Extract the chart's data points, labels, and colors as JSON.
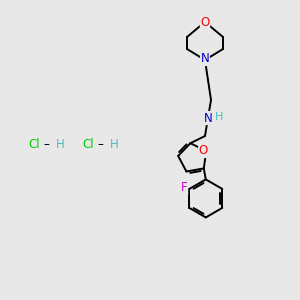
{
  "background_color": "#e8e8e8",
  "bond_color": "#000000",
  "atom_colors": {
    "O": "#ff0000",
    "N": "#0000cc",
    "F": "#cc00cc",
    "C": "#000000",
    "H": "#4dbbbb",
    "Cl": "#00cc00"
  },
  "figsize": [
    3.0,
    3.0
  ],
  "dpi": 100,
  "lw": 1.4,
  "font_size": 8.5
}
